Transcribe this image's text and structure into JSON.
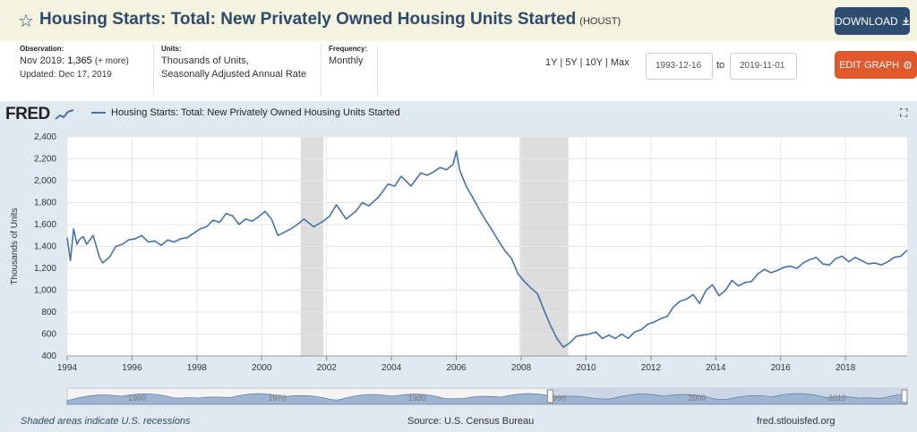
{
  "header": {
    "star_icon": "star-outline-icon",
    "title": "Housing Starts: Total: New Privately Owned Housing Units Started",
    "series_id": "(HOUST)",
    "download_label": "DOWNLOAD",
    "download_icon": "download-icon"
  },
  "meta": {
    "observation_label": "Observation:",
    "observation_period": "Nov 2019:",
    "observation_value": "1,365",
    "observation_more": "(+ more)",
    "updated": "Updated: Dec 17, 2019",
    "units_label": "Units:",
    "units_line1": "Thousands of Units,",
    "units_line2": "Seasonally Adjusted Annual Rate",
    "frequency_label": "Frequency:",
    "frequency_value": "Monthly"
  },
  "controls": {
    "ranges": [
      "1Y",
      "5Y",
      "10Y",
      "Max"
    ],
    "start_date": "1993-12-16",
    "to_label": "to",
    "end_date": "2019-11-01",
    "edit_label": "EDIT GRAPH",
    "edit_icon": "gear-icon"
  },
  "graph": {
    "logo": "FRED",
    "legend_label": "Housing Starts: Total: New Privately Owned Housing Units Started",
    "fullscreen_icon": "fullscreen-icon",
    "footer_left": "Shaded areas indicate U.S. recessions",
    "footer_mid": "Source: U.S. Census Bureau",
    "footer_right": "fred.stlouisfed.org",
    "line_color": "#4572a7",
    "recession_color": "#dcdcdc"
  },
  "chart_data": {
    "type": "line",
    "title": "",
    "ylabel": "Thousands of Units",
    "xlabel": "",
    "ylim": [
      400,
      2400
    ],
    "xlim": [
      1994.0,
      2019.9
    ],
    "yticks": [
      400,
      600,
      800,
      1000,
      1200,
      1400,
      1600,
      1800,
      2000,
      2200,
      2400
    ],
    "xticks": [
      "1994",
      "1996",
      "1998",
      "2000",
      "2002",
      "2004",
      "2006",
      "2008",
      "2010",
      "2012",
      "2014",
      "2016",
      "2018"
    ],
    "grid": true,
    "recessions": [
      [
        2001.2,
        2001.9
      ],
      [
        2007.95,
        2009.45
      ]
    ],
    "navigator_labels": [
      "1960",
      "1970",
      "1980",
      "1990",
      "2000",
      "2010"
    ],
    "series": [
      {
        "name": "Housing Starts: Total: New Privately Owned Housing Units Started",
        "x": [
          1994.0,
          1994.1,
          1994.2,
          1994.3,
          1994.4,
          1994.5,
          1994.6,
          1994.8,
          1995.0,
          1995.1,
          1995.3,
          1995.5,
          1995.7,
          1995.9,
          1996.1,
          1996.3,
          1996.5,
          1996.7,
          1996.9,
          1997.1,
          1997.3,
          1997.5,
          1997.7,
          1997.9,
          1998.1,
          1998.3,
          1998.5,
          1998.7,
          1998.9,
          1999.1,
          1999.3,
          1999.5,
          1999.7,
          1999.9,
          2000.1,
          2000.3,
          2000.5,
          2000.7,
          2000.9,
          2001.1,
          2001.3,
          2001.6,
          2001.9,
          2002.1,
          2002.3,
          2002.6,
          2002.9,
          2003.1,
          2003.3,
          2003.6,
          2003.9,
          2004.1,
          2004.3,
          2004.6,
          2004.9,
          2005.1,
          2005.3,
          2005.5,
          2005.7,
          2005.9,
          2006.0,
          2006.1,
          2006.3,
          2006.5,
          2006.7,
          2006.9,
          2007.1,
          2007.3,
          2007.5,
          2007.7,
          2007.9,
          2008.1,
          2008.3,
          2008.5,
          2008.7,
          2008.9,
          2009.1,
          2009.3,
          2009.5,
          2009.7,
          2009.9,
          2010.1,
          2010.3,
          2010.5,
          2010.7,
          2010.9,
          2011.1,
          2011.3,
          2011.5,
          2011.7,
          2011.9,
          2012.1,
          2012.3,
          2012.5,
          2012.7,
          2012.9,
          2013.1,
          2013.3,
          2013.5,
          2013.7,
          2013.9,
          2014.1,
          2014.3,
          2014.5,
          2014.7,
          2014.9,
          2015.1,
          2015.3,
          2015.5,
          2015.7,
          2015.9,
          2016.1,
          2016.3,
          2016.5,
          2016.7,
          2016.9,
          2017.1,
          2017.3,
          2017.5,
          2017.7,
          2017.9,
          2018.1,
          2018.3,
          2018.5,
          2018.7,
          2018.9,
          2019.1,
          2019.3,
          2019.5,
          2019.7,
          2019.9
        ],
        "values": [
          1480,
          1270,
          1560,
          1420,
          1470,
          1490,
          1420,
          1500,
          1300,
          1250,
          1300,
          1400,
          1420,
          1460,
          1470,
          1500,
          1440,
          1450,
          1410,
          1460,
          1440,
          1470,
          1480,
          1520,
          1560,
          1580,
          1640,
          1620,
          1700,
          1680,
          1600,
          1650,
          1630,
          1670,
          1720,
          1650,
          1500,
          1530,
          1560,
          1600,
          1650,
          1580,
          1630,
          1680,
          1780,
          1650,
          1720,
          1800,
          1770,
          1850,
          1970,
          1950,
          2040,
          1950,
          2070,
          2050,
          2080,
          2120,
          2100,
          2150,
          2270,
          2100,
          1950,
          1850,
          1740,
          1640,
          1550,
          1450,
          1360,
          1290,
          1150,
          1080,
          1020,
          970,
          820,
          680,
          560,
          480,
          520,
          580,
          590,
          600,
          620,
          560,
          590,
          560,
          600,
          560,
          620,
          640,
          690,
          710,
          740,
          760,
          850,
          900,
          920,
          960,
          880,
          1000,
          1050,
          950,
          1000,
          1090,
          1040,
          1070,
          1080,
          1150,
          1190,
          1160,
          1180,
          1210,
          1220,
          1200,
          1250,
          1280,
          1300,
          1240,
          1230,
          1290,
          1310,
          1260,
          1300,
          1270,
          1240,
          1250,
          1230,
          1260,
          1300,
          1310,
          1365
        ]
      }
    ]
  }
}
